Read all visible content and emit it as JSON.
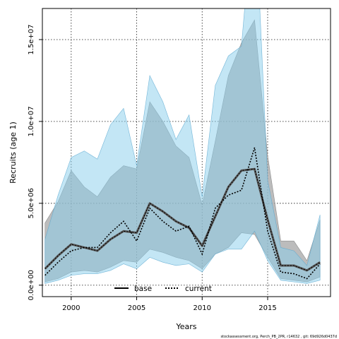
{
  "chart_data": {
    "type": "line",
    "xlabel": "Years",
    "ylabel": "Recruits (age 1)",
    "xlim": [
      1997.8,
      2019.8
    ],
    "ylim": [
      -700000,
      16900000
    ],
    "x_ticks": [
      2000,
      2005,
      2010,
      2015
    ],
    "y_ticks": [
      0,
      5000000,
      10000000,
      15000000
    ],
    "y_tick_labels": [
      "0.0e+00",
      "5.0e+06",
      "1.0e+07",
      "1.5e+07"
    ],
    "grid": true,
    "legend_position": "bottom",
    "footnote": "stockassessment.org, Perch_PB_2PR, r14632 , git: 69d926d0437d",
    "colors": {
      "base_band": "#a0a0a0",
      "current_band": "#87ceeb",
      "line": "#000000"
    },
    "x": [
      1998,
      1999,
      2000,
      2001,
      2002,
      2003,
      2004,
      2005,
      2006,
      2007,
      2008,
      2009,
      2010,
      2011,
      2012,
      2013,
      2014,
      2015,
      2016,
      2017,
      2018,
      2019
    ],
    "series": [
      {
        "name": "base",
        "style": "solid",
        "values": [
          1000000,
          1800000,
          2500000,
          2300000,
          2100000,
          2800000,
          3300000,
          3200000,
          5000000,
          4500000,
          3900000,
          3500000,
          2400000,
          4200000,
          6000000,
          7000000,
          7100000,
          4000000,
          1200000,
          1200000,
          900000,
          1400000
        ],
        "lower": [
          200000,
          400000,
          800000,
          900000,
          800000,
          1100000,
          1500000,
          1400000,
          2200000,
          2000000,
          1700000,
          1500000,
          1000000,
          1900000,
          2300000,
          3200000,
          3100000,
          1700000,
          400000,
          300000,
          200000,
          500000
        ],
        "upper": [
          3800000,
          5100000,
          7000000,
          6000000,
          5400000,
          6600000,
          7300000,
          7100000,
          11200000,
          10000000,
          8500000,
          7800000,
          4900000,
          8800000,
          12800000,
          14800000,
          16200000,
          7900000,
          2700000,
          2700000,
          1500000,
          4000000
        ]
      },
      {
        "name": "current",
        "style": "dotted",
        "values": [
          600000,
          1400000,
          2100000,
          2300000,
          2300000,
          3200000,
          3900000,
          2700000,
          4700000,
          3900000,
          3300000,
          3600000,
          1900000,
          4700000,
          5500000,
          5800000,
          8400000,
          3300000,
          800000,
          700000,
          400000,
          1300000
        ],
        "lower": [
          100000,
          300000,
          600000,
          700000,
          700000,
          900000,
          1300000,
          1000000,
          1700000,
          1400000,
          1200000,
          1300000,
          800000,
          1900000,
          2200000,
          2200000,
          3300000,
          1500000,
          300000,
          200000,
          100000,
          300000
        ],
        "upper": [
          2800000,
          5500000,
          7800000,
          8200000,
          7700000,
          9800000,
          10800000,
          7300000,
          12800000,
          11200000,
          8900000,
          10400000,
          5400000,
          12200000,
          14000000,
          14600000,
          24000000,
          6400000,
          2300000,
          2100000,
          1200000,
          4300000
        ]
      }
    ]
  }
}
